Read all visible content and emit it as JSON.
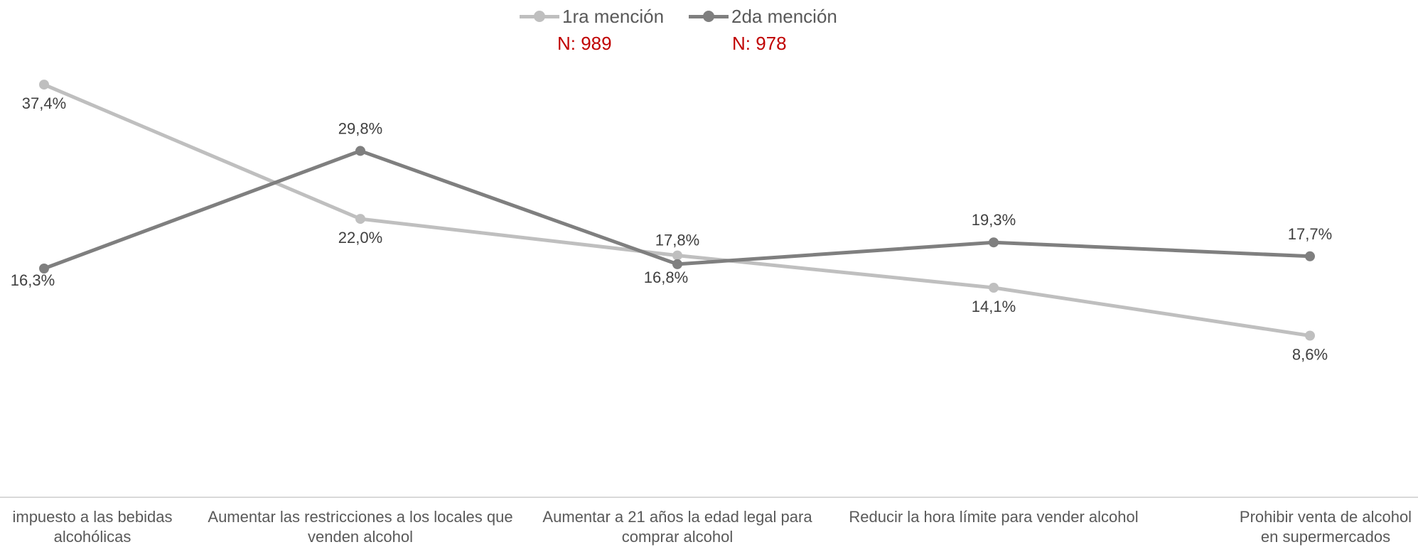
{
  "legend": {
    "series1": {
      "label": "1ra mención",
      "n": "N: 989"
    },
    "series2": {
      "label": "2da mención",
      "n": "N: 978"
    }
  },
  "chart_data": {
    "type": "line",
    "title": "",
    "xlabel": "",
    "ylabel": "",
    "categories": [
      "impuesto a las bebidas alcohólicas",
      "Aumentar las restricciones a los locales que venden alcohol",
      "Aumentar a 21 años la edad legal para comprar alcohol",
      "Reducir la hora límite para vender alcohol",
      "Prohibir venta de alcohol en supermercados"
    ],
    "series": [
      {
        "name": "1ra mención",
        "color": "#bfbfbf",
        "values": [
          37.4,
          22.0,
          17.8,
          14.1,
          8.6
        ],
        "labels": [
          "37,4%",
          "22,0%",
          "17,8%",
          "14,1%",
          "8,6%"
        ]
      },
      {
        "name": "2da mención",
        "color": "#7f7f7f",
        "values": [
          16.3,
          29.8,
          16.8,
          19.3,
          17.7
        ],
        "labels": [
          "16,3%",
          "29,8%",
          "16,8%",
          "19,3%",
          "17,7%"
        ]
      }
    ],
    "ylim": [
      0,
      45
    ],
    "grid": false,
    "legend_position": "top-center"
  }
}
